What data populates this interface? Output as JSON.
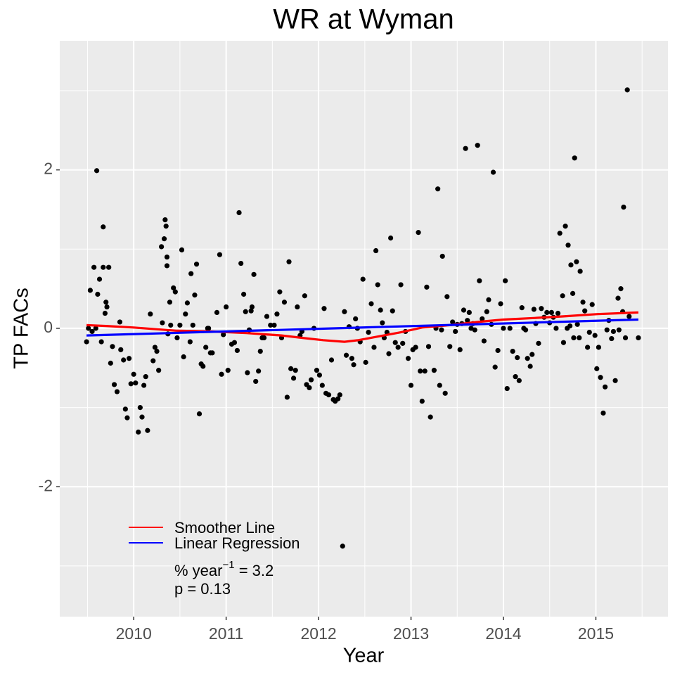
{
  "chart_data": {
    "type": "scatter",
    "title": "WR at Wyman",
    "x_label": "Year",
    "y_label": "TP FACs",
    "xlim": [
      2009.2,
      2015.78
    ],
    "xticks": [
      2010,
      2011,
      2012,
      2013,
      2014,
      2015
    ],
    "ylim": [
      -3.64,
      3.63
    ],
    "yticks": [
      -2,
      0,
      2
    ],
    "grid": true,
    "minor_grid": true,
    "points": {
      "color": "#000000",
      "x": [
        2009.49,
        2009.51,
        2009.53,
        2009.55,
        2009.57,
        2009.59,
        2009.6,
        2009.61,
        2009.63,
        2009.65,
        2009.67,
        2009.67,
        2009.69,
        2009.7,
        2009.71,
        2009.73,
        2009.75,
        2009.77,
        2009.79,
        2009.82,
        2009.85,
        2009.86,
        2009.89,
        2009.91,
        2009.93,
        2009.95,
        2009.97,
        2010.0,
        2010.02,
        2010.05,
        2010.07,
        2010.09,
        2010.11,
        2010.13,
        2010.15,
        2010.18,
        2010.21,
        2010.23,
        2010.25,
        2010.27,
        2010.3,
        2010.31,
        2010.33,
        2010.34,
        2010.35,
        2010.36,
        2010.36,
        2010.37,
        2010.39,
        2010.4,
        2010.43,
        2010.45,
        2010.47,
        2010.5,
        2010.52,
        2010.54,
        2010.56,
        2010.58,
        2010.61,
        2010.62,
        2010.64,
        2010.66,
        2010.68,
        2010.71,
        2010.73,
        2010.75,
        2010.78,
        2010.8,
        2010.81,
        2010.83,
        2010.85,
        2010.9,
        2010.93,
        2010.95,
        2010.97,
        2011.0,
        2011.02,
        2011.06,
        2011.09,
        2011.12,
        2011.14,
        2011.16,
        2011.19,
        2011.21,
        2011.23,
        2011.25,
        2011.27,
        2011.28,
        2011.3,
        2011.32,
        2011.35,
        2011.37,
        2011.39,
        2011.41,
        2011.44,
        2011.48,
        2011.52,
        2011.55,
        2011.58,
        2011.6,
        2011.63,
        2011.66,
        2011.68,
        2011.7,
        2011.73,
        2011.75,
        2011.77,
        2011.8,
        2011.82,
        2011.85,
        2011.87,
        2011.9,
        2011.92,
        2011.95,
        2011.98,
        2012.01,
        2012.04,
        2012.06,
        2012.08,
        2012.11,
        2012.14,
        2012.16,
        2012.18,
        2012.21,
        2012.23,
        2012.26,
        2012.28,
        2012.3,
        2012.33,
        2012.36,
        2012.38,
        2012.4,
        2012.42,
        2012.45,
        2012.48,
        2012.51,
        2012.54,
        2012.57,
        2012.6,
        2012.62,
        2012.64,
        2012.67,
        2012.69,
        2012.71,
        2012.74,
        2012.76,
        2012.78,
        2012.8,
        2012.83,
        2012.86,
        2012.89,
        2012.91,
        2012.94,
        2012.97,
        2013.0,
        2013.02,
        2013.05,
        2013.08,
        2013.1,
        2013.12,
        2013.15,
        2013.17,
        2013.19,
        2013.21,
        2013.25,
        2013.27,
        2013.29,
        2013.31,
        2013.33,
        2013.34,
        2013.37,
        2013.39,
        2013.42,
        2013.45,
        2013.48,
        2013.5,
        2013.53,
        2013.55,
        2013.57,
        2013.59,
        2013.61,
        2013.63,
        2013.65,
        2013.67,
        2013.69,
        2013.72,
        2013.74,
        2013.77,
        2013.79,
        2013.82,
        2013.84,
        2013.87,
        2013.89,
        2013.91,
        2013.94,
        2013.97,
        2014.0,
        2014.02,
        2014.04,
        2014.07,
        2014.1,
        2014.13,
        2014.15,
        2014.17,
        2014.2,
        2014.22,
        2014.24,
        2014.26,
        2014.29,
        2014.31,
        2014.33,
        2014.35,
        2014.38,
        2014.41,
        2014.44,
        2014.47,
        2014.5,
        2014.52,
        2014.54,
        2014.57,
        2014.59,
        2014.61,
        2014.64,
        2014.65,
        2014.67,
        2014.69,
        2014.7,
        2014.72,
        2014.73,
        2014.75,
        2014.76,
        2014.77,
        2014.79,
        2014.8,
        2014.82,
        2014.83,
        2014.86,
        2014.88,
        2014.91,
        2014.93,
        2014.96,
        2014.99,
        2015.01,
        2015.03,
        2015.05,
        2015.08,
        2015.1,
        2015.12,
        2015.14,
        2015.17,
        2015.19,
        2015.21,
        2015.24,
        2015.25,
        2015.27,
        2015.29,
        2015.3,
        2015.32,
        2015.34,
        2015.36,
        2015.46
      ],
      "y": [
        -0.17,
        0.0,
        0.48,
        -0.04,
        0.77,
        0.0,
        1.99,
        0.43,
        0.62,
        -0.17,
        1.28,
        0.77,
        0.19,
        0.33,
        0.27,
        0.77,
        -0.44,
        -0.23,
        -0.71,
        -0.8,
        0.08,
        -0.27,
        -0.4,
        -1.02,
        -1.13,
        -0.38,
        -0.7,
        -0.58,
        -0.69,
        -1.31,
        -1.0,
        -1.12,
        -0.72,
        -0.61,
        -1.29,
        0.18,
        -0.41,
        -0.24,
        -0.29,
        -0.53,
        1.03,
        0.07,
        1.13,
        1.37,
        1.29,
        0.9,
        0.79,
        -0.07,
        0.33,
        0.04,
        0.51,
        0.46,
        -0.12,
        0.04,
        0.99,
        -0.36,
        0.18,
        0.32,
        -0.17,
        0.69,
        0.04,
        0.42,
        0.81,
        -1.08,
        -0.45,
        -0.48,
        -0.24,
        0.0,
        0.0,
        -0.31,
        -0.31,
        0.2,
        0.93,
        -0.58,
        -0.08,
        0.27,
        -0.53,
        -0.2,
        -0.18,
        -0.28,
        1.46,
        0.82,
        0.43,
        0.21,
        -0.56,
        -0.02,
        0.22,
        0.27,
        0.68,
        -0.67,
        -0.54,
        -0.29,
        -0.12,
        -0.12,
        0.15,
        0.04,
        0.04,
        0.18,
        0.46,
        -0.12,
        0.33,
        -0.87,
        0.84,
        -0.51,
        -0.63,
        -0.53,
        0.27,
        -0.09,
        -0.04,
        0.41,
        -0.71,
        -0.75,
        -0.65,
        0.0,
        -0.53,
        -0.59,
        -0.72,
        0.25,
        -0.82,
        -0.84,
        -0.4,
        -0.9,
        -0.92,
        -0.89,
        -0.84,
        -2.75,
        0.21,
        -0.34,
        0.02,
        -0.38,
        -0.46,
        0.12,
        0.0,
        -0.17,
        0.62,
        -0.43,
        -0.05,
        0.31,
        -0.24,
        0.98,
        0.55,
        0.23,
        0.07,
        -0.12,
        -0.05,
        -0.32,
        1.14,
        0.22,
        -0.18,
        -0.24,
        0.55,
        -0.19,
        -0.04,
        -0.38,
        -0.72,
        -0.27,
        -0.24,
        1.21,
        -0.54,
        -0.92,
        -0.54,
        0.52,
        -0.23,
        -1.12,
        -0.53,
        0.0,
        1.76,
        -0.72,
        -0.02,
        0.91,
        -0.82,
        0.4,
        -0.23,
        0.08,
        -0.04,
        0.05,
        -0.27,
        0.06,
        0.23,
        2.27,
        0.1,
        0.2,
        0.0,
        0.06,
        -0.02,
        2.31,
        0.6,
        0.12,
        -0.16,
        0.21,
        0.36,
        0.05,
        1.97,
        -0.49,
        -0.28,
        0.31,
        0.0,
        0.6,
        -0.76,
        0.0,
        -0.29,
        -0.61,
        -0.37,
        -0.66,
        0.26,
        0.0,
        -0.02,
        -0.38,
        -0.48,
        -0.33,
        0.24,
        0.06,
        -0.19,
        0.25,
        0.14,
        0.2,
        0.07,
        0.2,
        0.14,
        0.0,
        0.19,
        1.2,
        0.41,
        -0.18,
        1.29,
        0.0,
        1.05,
        0.03,
        0.8,
        0.44,
        -0.12,
        2.15,
        0.84,
        0.05,
        -0.12,
        0.72,
        0.33,
        0.22,
        -0.24,
        -0.05,
        0.3,
        -0.09,
        -0.51,
        -0.24,
        -0.62,
        -1.07,
        -0.74,
        -0.02,
        0.1,
        -0.13,
        -0.04,
        -0.66,
        0.38,
        -0.02,
        0.5,
        0.21,
        1.53,
        -0.12,
        3.01,
        0.15,
        -0.12
      ]
    },
    "lines": [
      {
        "name": "Smoother Line",
        "color": "#ff0000",
        "x": [
          2009.49,
          2009.7,
          2010.0,
          2010.46,
          2010.84,
          2011.22,
          2011.6,
          2011.82,
          2012.05,
          2012.28,
          2012.43,
          2012.66,
          2012.89,
          2013.12,
          2013.42,
          2013.72,
          2014.0,
          2014.33,
          2014.64,
          2015.02,
          2015.46
        ],
        "y": [
          0.04,
          0.03,
          0.01,
          -0.03,
          -0.04,
          -0.06,
          -0.09,
          -0.12,
          -0.15,
          -0.17,
          -0.15,
          -0.1,
          -0.05,
          0.01,
          0.04,
          0.08,
          0.11,
          0.13,
          0.15,
          0.18,
          0.2
        ]
      },
      {
        "name": "Linear Regression",
        "color": "#0000ff",
        "x": [
          2009.49,
          2015.46
        ],
        "y": [
          -0.09,
          0.11
        ]
      }
    ],
    "annotations": [
      {
        "text": "% year",
        "superscript": "−1",
        "suffix": " = 3.2"
      },
      {
        "text": "p = 0.13"
      }
    ]
  }
}
